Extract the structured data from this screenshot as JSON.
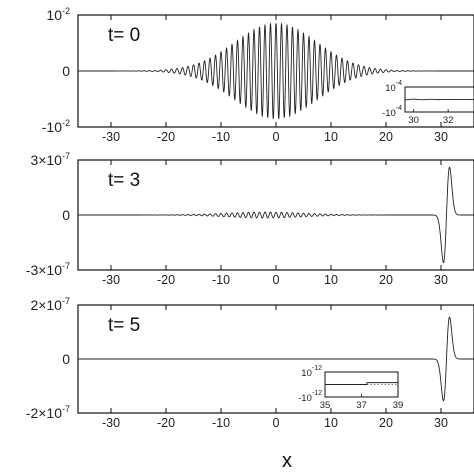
{
  "chart_data": [
    {
      "type": "line",
      "label": "t= 0",
      "xlim": [
        -36,
        36
      ],
      "ylim": [
        -0.01,
        0.01
      ],
      "xticks": [
        -30,
        -20,
        -10,
        0,
        10,
        20,
        30
      ],
      "xtick_labels": [
        "-30",
        "-20",
        "-10",
        "0",
        "10",
        "20",
        "30"
      ],
      "yticks": [
        {
          "value": 0.01,
          "base": "10",
          "exp": "-2"
        },
        {
          "value": 0,
          "base": "0",
          "exp": ""
        },
        {
          "value": -0.01,
          "base": "-10",
          "exp": "-2"
        }
      ],
      "series": [
        {
          "kind": "wavepacket",
          "amplitude": 0.0085,
          "center": 0,
          "width": 10.5,
          "wavelength": 1.0
        }
      ],
      "inset": {
        "xlim": [
          29.5,
          33.5
        ],
        "ylim": [
          -0.0001,
          0.0001
        ],
        "xticks": [
          30,
          32
        ],
        "xtick_labels": [
          "30",
          "32"
        ],
        "yticks": [
          {
            "value": 0.0001,
            "base": "10",
            "exp": "-4"
          },
          {
            "value": -0.0001,
            "base": "-10",
            "exp": "-4"
          }
        ],
        "series": [
          {
            "kind": "wavepacket",
            "amplitude": 0.0085,
            "center": 0,
            "width": 10.5,
            "wavelength": 1.0
          }
        ]
      }
    },
    {
      "type": "line",
      "label": "t= 3",
      "xlim": [
        -36,
        36
      ],
      "ylim": [
        -3e-07,
        3e-07
      ],
      "xticks": [
        -30,
        -20,
        -10,
        0,
        10,
        20,
        30
      ],
      "xtick_labels": [
        "-30",
        "-20",
        "-10",
        "0",
        "10",
        "20",
        "30"
      ],
      "yticks": [
        {
          "value": 3e-07,
          "base": "3×10",
          "exp": "-7"
        },
        {
          "value": 0,
          "base": "0",
          "exp": ""
        },
        {
          "value": -3e-07,
          "base": "-3×10",
          "exp": "-7"
        }
      ],
      "series": [
        {
          "kind": "wavepacket",
          "amplitude": 1.6e-08,
          "center": -2,
          "width": 10,
          "wavelength": 1.0
        },
        {
          "kind": "pulse",
          "amplitude": 2.6e-07,
          "center": 31,
          "width": 0.55
        }
      ]
    },
    {
      "type": "line",
      "label": "t= 5",
      "xlim": [
        -36,
        36
      ],
      "ylim": [
        -2e-07,
        2e-07
      ],
      "xticks": [
        -30,
        -20,
        -10,
        0,
        10,
        20,
        30
      ],
      "xtick_labels": [
        "-30",
        "-20",
        "-10",
        "0",
        "10",
        "20",
        "30"
      ],
      "yticks": [
        {
          "value": 2e-07,
          "base": "2×10",
          "exp": "-7"
        },
        {
          "value": 0,
          "base": "0",
          "exp": ""
        },
        {
          "value": -2e-07,
          "base": "-2×10",
          "exp": "-7"
        }
      ],
      "series": [
        {
          "kind": "pulse",
          "amplitude": 1.55e-07,
          "center": 31,
          "width": 0.55
        }
      ],
      "inset": {
        "xlim": [
          35,
          39
        ],
        "ylim": [
          -1e-12,
          1e-12
        ],
        "xticks": [
          35,
          37,
          39
        ],
        "xtick_labels": [
          "35",
          "37",
          "39"
        ],
        "yticks": [
          {
            "value": 1e-12,
            "base": "10",
            "exp": "-12"
          },
          {
            "value": -1e-12,
            "base": "-10",
            "exp": "-12"
          }
        ],
        "dotted_zero_line": true,
        "series": [
          {
            "kind": "step",
            "x_step": 37.3,
            "y_before": 0,
            "y_after": 1.5e-13
          }
        ]
      }
    }
  ],
  "xlabel": "x"
}
